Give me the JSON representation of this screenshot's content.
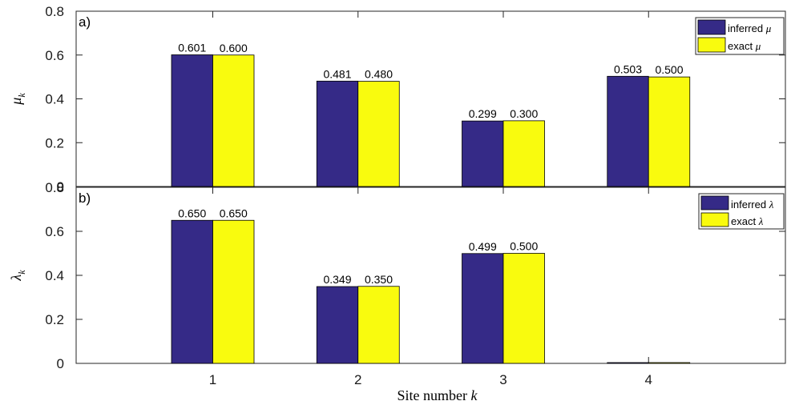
{
  "chart_data": [
    {
      "type": "bar",
      "panel_tag": "a)",
      "categories": [
        "1",
        "2",
        "3",
        "4"
      ],
      "series": [
        {
          "name": "inferred μ",
          "values": [
            0.601,
            0.481,
            0.299,
            0.503
          ],
          "labels": [
            "0.601",
            "0.481",
            "0.299",
            "0.503"
          ],
          "color": "#352a87"
        },
        {
          "name": "exact μ",
          "values": [
            0.6,
            0.48,
            0.3,
            0.5
          ],
          "labels": [
            "0.600",
            "0.480",
            "0.300",
            "0.500"
          ],
          "color": "#f9fb0e"
        }
      ],
      "ylabel_symbol": "μ",
      "ylabel_sub": "k",
      "ylim": [
        0,
        0.8
      ],
      "yticks": [
        "0",
        "0.2",
        "0.4",
        "0.6",
        "0.8"
      ],
      "xticks": [],
      "legend_position": "top-right",
      "grid": false
    },
    {
      "type": "bar",
      "panel_tag": "b)",
      "categories": [
        "1",
        "2",
        "3",
        "4"
      ],
      "series": [
        {
          "name": "inferred λ",
          "values": [
            0.65,
            0.349,
            0.499,
            0
          ],
          "labels": [
            "0.650",
            "0.349",
            "0.499",
            ""
          ],
          "color": "#352a87"
        },
        {
          "name": "exact λ",
          "values": [
            0.65,
            0.35,
            0.5,
            0
          ],
          "labels": [
            "0.650",
            "0.350",
            "0.500",
            ""
          ],
          "color": "#f9fb0e"
        }
      ],
      "ylabel_symbol": "λ",
      "ylabel_sub": "k",
      "ylim": [
        0,
        0.8
      ],
      "yticks": [
        "0",
        "0.2",
        "0.4",
        "0.6",
        "0.8"
      ],
      "xticks": [
        "1",
        "2",
        "3",
        "4"
      ],
      "xlabel_text": "Site number ",
      "xlabel_var": "k",
      "legend_position": "top-right",
      "grid": false
    }
  ]
}
